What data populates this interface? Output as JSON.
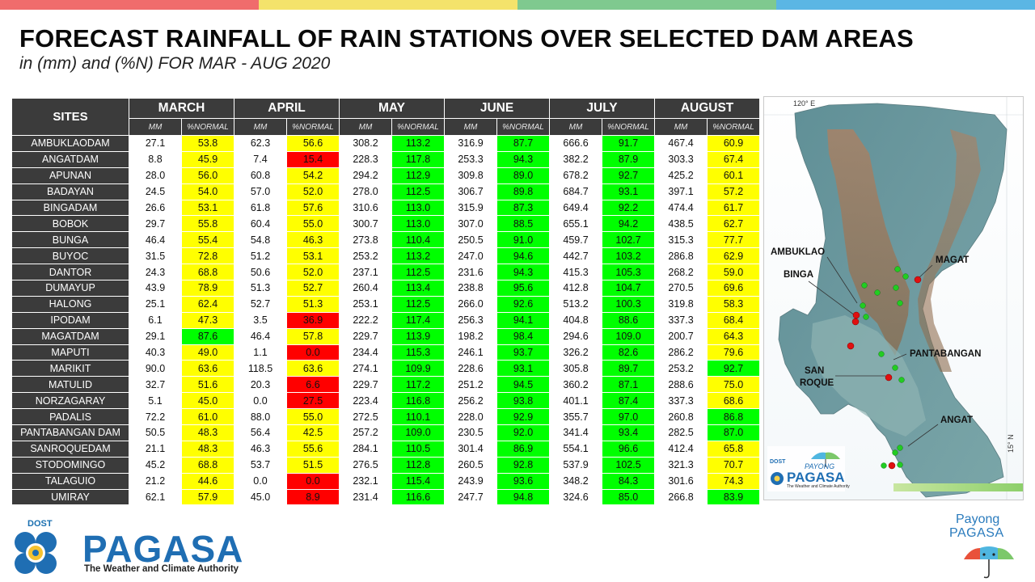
{
  "header": {
    "title": "FORECAST RAINFALL OF RAIN STATIONS OVER SELECTED DAM AREAS",
    "subtitle": "in (mm) and (%N) FOR MAR - AUG 2020",
    "band_colors": [
      "#f06c6c",
      "#f4e36b",
      "#7fc98f",
      "#5bb6e4"
    ]
  },
  "table": {
    "site_header": "SITES",
    "months": [
      "MARCH",
      "APRIL",
      "MAY",
      "JUNE",
      "JULY",
      "AUGUST"
    ],
    "sub_mm": "MM",
    "sub_pct": "%NORMAL",
    "legend_colors": {
      "yellow": "#ffff00",
      "green": "#00ff00",
      "red": "#ff0000"
    },
    "rows": [
      {
        "site": "AMBUKLAODAM",
        "cells": [
          [
            "27.1",
            "53.8",
            "yellow"
          ],
          [
            "62.3",
            "56.6",
            "yellow"
          ],
          [
            "308.2",
            "113.2",
            "green"
          ],
          [
            "316.9",
            "87.7",
            "green"
          ],
          [
            "666.6",
            "91.7",
            "green"
          ],
          [
            "467.4",
            "60.9",
            "yellow"
          ]
        ]
      },
      {
        "site": "ANGATDAM",
        "cells": [
          [
            "8.8",
            "45.9",
            "yellow"
          ],
          [
            "7.4",
            "15.4",
            "red"
          ],
          [
            "228.3",
            "117.8",
            "green"
          ],
          [
            "253.3",
            "94.3",
            "green"
          ],
          [
            "382.2",
            "87.9",
            "green"
          ],
          [
            "303.3",
            "67.4",
            "yellow"
          ]
        ]
      },
      {
        "site": "APUNAN",
        "cells": [
          [
            "28.0",
            "56.0",
            "yellow"
          ],
          [
            "60.8",
            "54.2",
            "yellow"
          ],
          [
            "294.2",
            "112.9",
            "green"
          ],
          [
            "309.8",
            "89.0",
            "green"
          ],
          [
            "678.2",
            "92.7",
            "green"
          ],
          [
            "425.2",
            "60.1",
            "yellow"
          ]
        ]
      },
      {
        "site": "BADAYAN",
        "cells": [
          [
            "24.5",
            "54.0",
            "yellow"
          ],
          [
            "57.0",
            "52.0",
            "yellow"
          ],
          [
            "278.0",
            "112.5",
            "green"
          ],
          [
            "306.7",
            "89.8",
            "green"
          ],
          [
            "684.7",
            "93.1",
            "green"
          ],
          [
            "397.1",
            "57.2",
            "yellow"
          ]
        ]
      },
      {
        "site": "BINGADAM",
        "cells": [
          [
            "26.6",
            "53.1",
            "yellow"
          ],
          [
            "61.8",
            "57.6",
            "yellow"
          ],
          [
            "310.6",
            "113.0",
            "green"
          ],
          [
            "315.9",
            "87.3",
            "green"
          ],
          [
            "649.4",
            "92.2",
            "green"
          ],
          [
            "474.4",
            "61.7",
            "yellow"
          ]
        ]
      },
      {
        "site": "BOBOK",
        "cells": [
          [
            "29.7",
            "55.8",
            "yellow"
          ],
          [
            "60.4",
            "55.0",
            "yellow"
          ],
          [
            "300.7",
            "113.0",
            "green"
          ],
          [
            "307.0",
            "88.5",
            "green"
          ],
          [
            "655.1",
            "94.2",
            "green"
          ],
          [
            "438.5",
            "62.7",
            "yellow"
          ]
        ]
      },
      {
        "site": "BUNGA",
        "cells": [
          [
            "46.4",
            "55.4",
            "yellow"
          ],
          [
            "54.8",
            "46.3",
            "yellow"
          ],
          [
            "273.8",
            "110.4",
            "green"
          ],
          [
            "250.5",
            "91.0",
            "green"
          ],
          [
            "459.7",
            "102.7",
            "green"
          ],
          [
            "315.3",
            "77.7",
            "yellow"
          ]
        ]
      },
      {
        "site": "BUYOC",
        "cells": [
          [
            "31.5",
            "72.8",
            "yellow"
          ],
          [
            "51.2",
            "53.1",
            "yellow"
          ],
          [
            "253.2",
            "113.2",
            "green"
          ],
          [
            "247.0",
            "94.6",
            "green"
          ],
          [
            "442.7",
            "103.2",
            "green"
          ],
          [
            "286.8",
            "62.9",
            "yellow"
          ]
        ]
      },
      {
        "site": "DANTOR",
        "cells": [
          [
            "24.3",
            "68.8",
            "yellow"
          ],
          [
            "50.6",
            "52.0",
            "yellow"
          ],
          [
            "237.1",
            "112.5",
            "green"
          ],
          [
            "231.6",
            "94.3",
            "green"
          ],
          [
            "415.3",
            "105.3",
            "green"
          ],
          [
            "268.2",
            "59.0",
            "yellow"
          ]
        ]
      },
      {
        "site": "DUMAYUP",
        "cells": [
          [
            "43.9",
            "78.9",
            "yellow"
          ],
          [
            "51.3",
            "52.7",
            "yellow"
          ],
          [
            "260.4",
            "113.4",
            "green"
          ],
          [
            "238.8",
            "95.6",
            "green"
          ],
          [
            "412.8",
            "104.7",
            "green"
          ],
          [
            "270.5",
            "69.6",
            "yellow"
          ]
        ]
      },
      {
        "site": "HALONG",
        "cells": [
          [
            "25.1",
            "62.4",
            "yellow"
          ],
          [
            "52.7",
            "51.3",
            "yellow"
          ],
          [
            "253.1",
            "112.5",
            "green"
          ],
          [
            "266.0",
            "92.6",
            "green"
          ],
          [
            "513.2",
            "100.3",
            "green"
          ],
          [
            "319.8",
            "58.3",
            "yellow"
          ]
        ]
      },
      {
        "site": "IPODAM",
        "cells": [
          [
            "6.1",
            "47.3",
            "yellow"
          ],
          [
            "3.5",
            "36.9",
            "red"
          ],
          [
            "222.2",
            "117.4",
            "green"
          ],
          [
            "256.3",
            "94.1",
            "green"
          ],
          [
            "404.8",
            "88.6",
            "green"
          ],
          [
            "337.3",
            "68.4",
            "yellow"
          ]
        ]
      },
      {
        "site": "MAGATDAM",
        "cells": [
          [
            "29.1",
            "87.6",
            "green"
          ],
          [
            "46.4",
            "57.8",
            "yellow"
          ],
          [
            "229.7",
            "113.9",
            "green"
          ],
          [
            "198.2",
            "98.4",
            "green"
          ],
          [
            "294.6",
            "109.0",
            "green"
          ],
          [
            "200.7",
            "64.3",
            "yellow"
          ]
        ]
      },
      {
        "site": "MAPUTI",
        "cells": [
          [
            "40.3",
            "49.0",
            "yellow"
          ],
          [
            "1.1",
            "0.0",
            "red"
          ],
          [
            "234.4",
            "115.3",
            "green"
          ],
          [
            "246.1",
            "93.7",
            "green"
          ],
          [
            "326.2",
            "82.6",
            "green"
          ],
          [
            "286.2",
            "79.6",
            "yellow"
          ]
        ]
      },
      {
        "site": "MARIKIT",
        "cells": [
          [
            "90.0",
            "63.6",
            "yellow"
          ],
          [
            "118.5",
            "63.6",
            "yellow"
          ],
          [
            "274.1",
            "109.9",
            "green"
          ],
          [
            "228.6",
            "93.1",
            "green"
          ],
          [
            "305.8",
            "89.7",
            "green"
          ],
          [
            "253.2",
            "92.7",
            "green"
          ]
        ]
      },
      {
        "site": "MATULID",
        "cells": [
          [
            "32.7",
            "51.6",
            "yellow"
          ],
          [
            "20.3",
            "6.6",
            "red"
          ],
          [
            "229.7",
            "117.2",
            "green"
          ],
          [
            "251.2",
            "94.5",
            "green"
          ],
          [
            "360.2",
            "87.1",
            "green"
          ],
          [
            "288.6",
            "75.0",
            "yellow"
          ]
        ]
      },
      {
        "site": "NORZAGARAY",
        "cells": [
          [
            "5.1",
            "45.0",
            "yellow"
          ],
          [
            "0.0",
            "27.5",
            "red"
          ],
          [
            "223.4",
            "116.8",
            "green"
          ],
          [
            "256.2",
            "93.8",
            "green"
          ],
          [
            "401.1",
            "87.4",
            "green"
          ],
          [
            "337.3",
            "68.6",
            "yellow"
          ]
        ]
      },
      {
        "site": "PADALIS",
        "cells": [
          [
            "72.2",
            "61.0",
            "yellow"
          ],
          [
            "88.0",
            "55.0",
            "yellow"
          ],
          [
            "272.5",
            "110.1",
            "green"
          ],
          [
            "228.0",
            "92.9",
            "green"
          ],
          [
            "355.7",
            "97.0",
            "green"
          ],
          [
            "260.8",
            "86.8",
            "green"
          ]
        ]
      },
      {
        "site": "PANTABANGAN DAM",
        "cells": [
          [
            "50.5",
            "48.3",
            "yellow"
          ],
          [
            "56.4",
            "42.5",
            "yellow"
          ],
          [
            "257.2",
            "109.0",
            "green"
          ],
          [
            "230.5",
            "92.0",
            "green"
          ],
          [
            "341.4",
            "93.4",
            "green"
          ],
          [
            "282.5",
            "87.0",
            "green"
          ]
        ]
      },
      {
        "site": "SANROQUEDAM",
        "cells": [
          [
            "21.1",
            "48.3",
            "yellow"
          ],
          [
            "46.3",
            "55.6",
            "yellow"
          ],
          [
            "284.1",
            "110.5",
            "green"
          ],
          [
            "301.4",
            "86.9",
            "green"
          ],
          [
            "554.1",
            "96.6",
            "green"
          ],
          [
            "412.4",
            "65.8",
            "yellow"
          ]
        ]
      },
      {
        "site": "STODOMINGO",
        "cells": [
          [
            "45.2",
            "68.8",
            "yellow"
          ],
          [
            "53.7",
            "51.5",
            "yellow"
          ],
          [
            "276.5",
            "112.8",
            "green"
          ],
          [
            "260.5",
            "92.8",
            "green"
          ],
          [
            "537.9",
            "102.5",
            "green"
          ],
          [
            "321.3",
            "70.7",
            "yellow"
          ]
        ]
      },
      {
        "site": "TALAGUIO",
        "cells": [
          [
            "21.2",
            "44.6",
            "yellow"
          ],
          [
            "0.0",
            "0.0",
            "red"
          ],
          [
            "232.1",
            "115.4",
            "green"
          ],
          [
            "243.9",
            "93.6",
            "green"
          ],
          [
            "348.2",
            "84.3",
            "green"
          ],
          [
            "301.6",
            "74.3",
            "yellow"
          ]
        ]
      },
      {
        "site": "UMIRAY",
        "cells": [
          [
            "62.1",
            "57.9",
            "yellow"
          ],
          [
            "45.0",
            "8.9",
            "red"
          ],
          [
            "231.4",
            "116.6",
            "green"
          ],
          [
            "247.7",
            "94.8",
            "green"
          ],
          [
            "324.6",
            "85.0",
            "green"
          ],
          [
            "266.8",
            "83.9",
            "green"
          ]
        ]
      }
    ]
  },
  "map": {
    "longitude_label": "120° E",
    "latitude_label": "15° N",
    "dam_labels": {
      "ambuklao": "AMBUKLAO",
      "binga": "BINGA",
      "magat": "MAGAT",
      "pantabangan": "PANTABANGAN",
      "san_roque_line1": "SAN",
      "san_roque_line2": "ROQUE",
      "angat": "ANGAT"
    },
    "inset_logo": {
      "dost": "DOST",
      "payong": "PAYONG",
      "pagasa": "PAGASA",
      "tagline": "The Weather and Climate Authority"
    },
    "station_colors": {
      "dam": "#e01010",
      "rain_station": "#22cc22"
    }
  },
  "footer": {
    "dost": "DOST",
    "brand": "PAGASA",
    "tagline": "The Weather and Climate Authority",
    "payong_line1": "Payong",
    "payong_line2": "PAGASA"
  }
}
